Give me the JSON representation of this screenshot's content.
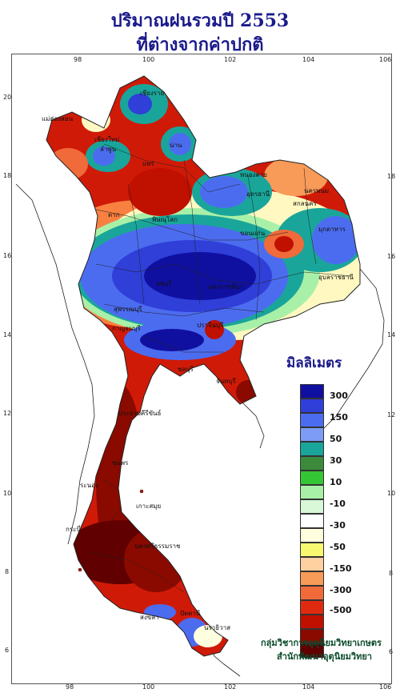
{
  "title": {
    "line1": "ปริมาณฝนรวมปี  2553",
    "line2": "ที่ต่างจากค่าปกติ"
  },
  "axes": {
    "lon_ticks": [
      "98",
      "100",
      "102",
      "104",
      "106"
    ],
    "lat_ticks": [
      "20",
      "18",
      "16",
      "14",
      "12",
      "10",
      "8",
      "6"
    ]
  },
  "legend": {
    "unit": "มิลลิเมตร",
    "labels": [
      "300",
      "150",
      "50",
      "30",
      "10",
      "-10",
      "-30",
      "-50",
      "-150",
      "-300",
      "-500"
    ],
    "colors": [
      "#1010a0",
      "#2f3fd8",
      "#4c6cf0",
      "#7c9cf5",
      "#1aa59a",
      "#3c8a3c",
      "#34c634",
      "#a8f0a8",
      "#d8f8d8",
      "#ffffff",
      "#ffffe0",
      "#f8f870",
      "#ffd0a0",
      "#f89a58",
      "#f06a3a",
      "#e02a10",
      "#c01000",
      "#8a0a00",
      "#600000"
    ]
  },
  "credit": {
    "line1": "กลุ่มวิชาการอุตุนิยมวิทยาเกษตร",
    "line2": "สำนักพัฒนาอุตุนิยมวิทยา"
  },
  "places": [
    "เชียงราย",
    "เชียงใหม่",
    "แม่ฮ่องสอน",
    "น่าน",
    "แพร่",
    "ลำพูน",
    "ตาก",
    "พิษณุโลก",
    "หนองคาย",
    "อุดรธานี",
    "นครพนม",
    "สกลนคร",
    "มุกดาหาร",
    "ขอนแก่น",
    "อุบลราชธานี",
    "นครราชสีมา",
    "ลพบุรี",
    "สุพรรณบุรี",
    "กาญจนบุรี",
    "ปราจีนบุรี",
    "ชลบุรี",
    "จันทบุรี",
    "ประจวบคีรีขันธ์",
    "ระนอง",
    "ชุมพร",
    "เกาะสมุย",
    "กระบี่",
    "นครศรีธรรมราช",
    "สงขลา",
    "ปัตตานี",
    "นราธิวาส"
  ]
}
